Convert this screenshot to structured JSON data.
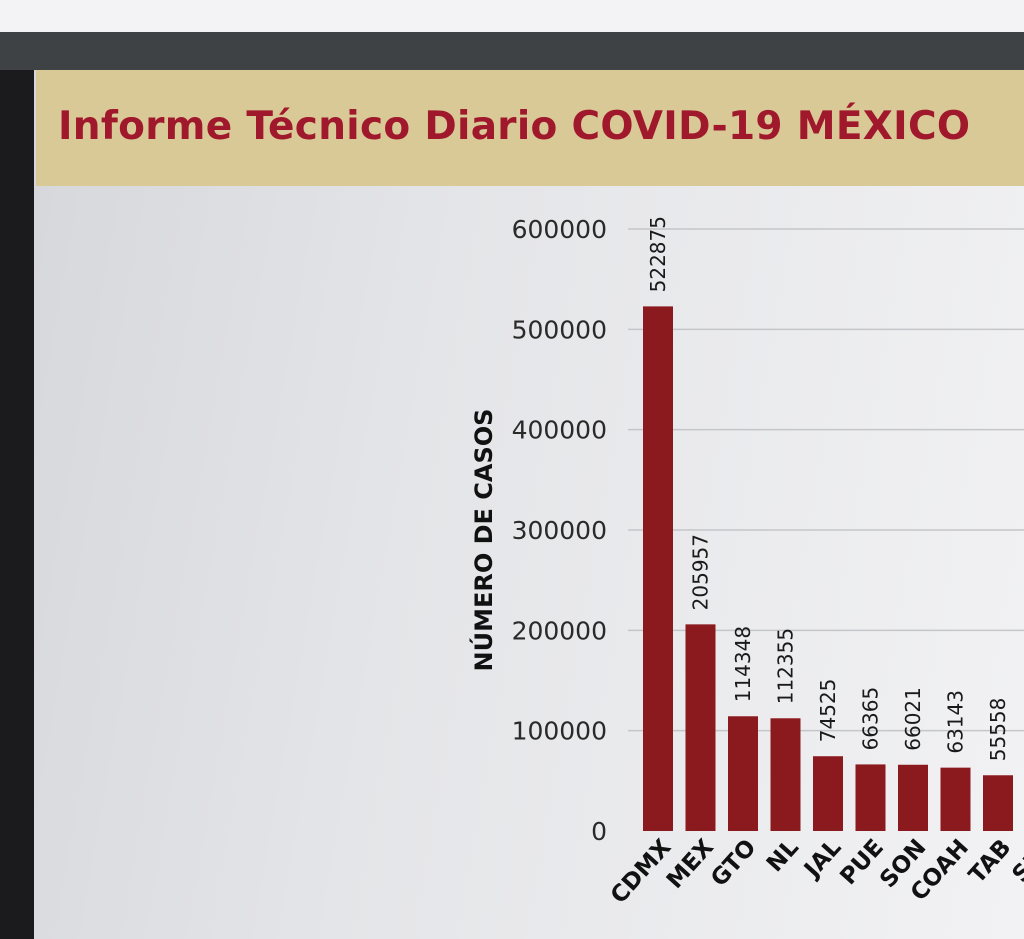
{
  "header": {
    "title": "Informe Técnico Diario COVID-19 MÉXICO"
  },
  "colors": {
    "bar": "#8b1a1f",
    "title": "#a0182c",
    "banner": "#d9c996",
    "gridline": "#c5c6ca"
  },
  "chart_data": {
    "type": "bar",
    "ylabel": "NÚMERO DE CASOS",
    "ylim": [
      0,
      600000
    ],
    "yticks": [
      0,
      100000,
      200000,
      300000,
      400000,
      500000,
      600000
    ],
    "grid": true,
    "categories": [
      "CDMX",
      "MEX",
      "GTO",
      "NL",
      "JAL",
      "PUE",
      "SON",
      "COAH",
      "TAB",
      "SLP"
    ],
    "values": [
      522875,
      205957,
      114348,
      112355,
      74525,
      66365,
      66021,
      63143,
      55558,
      null
    ],
    "value_labels": [
      "522875",
      "205957",
      "114348",
      "112355",
      "74525",
      "66365",
      "66021",
      "63143",
      "55558",
      ""
    ]
  }
}
